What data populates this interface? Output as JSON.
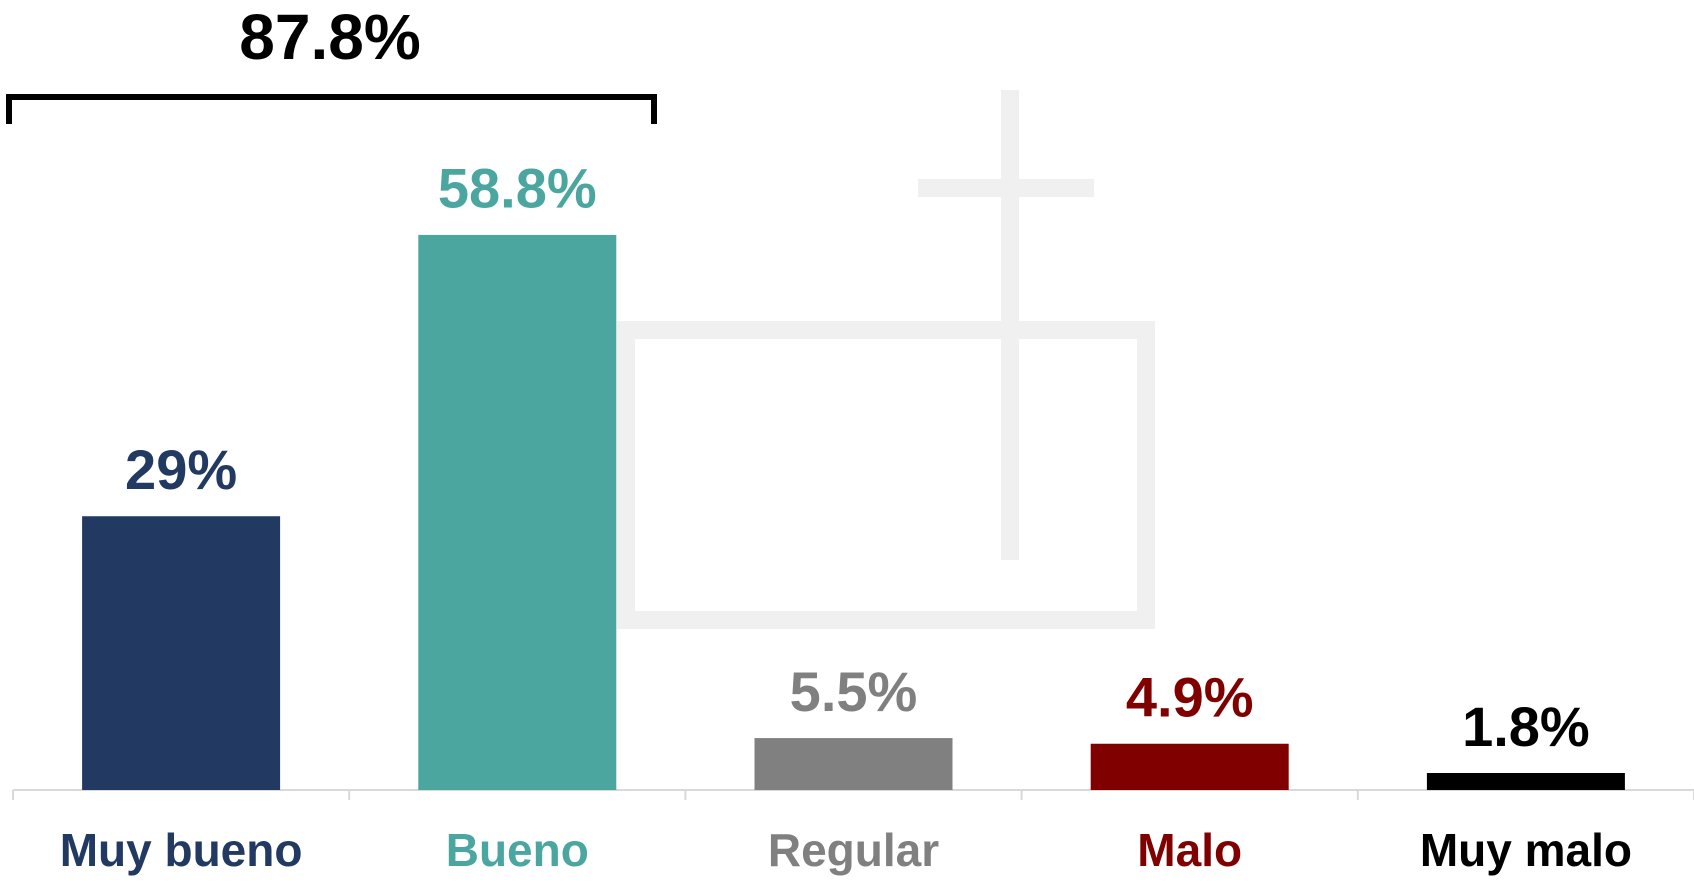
{
  "chart_data": {
    "type": "bar",
    "annotation": "87.8%",
    "categories": [
      "Muy bueno",
      "Bueno",
      "Regular",
      "Malo",
      "Muy malo"
    ],
    "values": [
      29,
      58.8,
      5.5,
      4.9,
      1.8
    ],
    "value_labels": [
      "29%",
      "58.8%",
      "5.5%",
      "4.9%",
      "1.8%"
    ],
    "colors": [
      "#223962",
      "#4ba6a0",
      "#808080",
      "#800000",
      "#000000"
    ]
  }
}
